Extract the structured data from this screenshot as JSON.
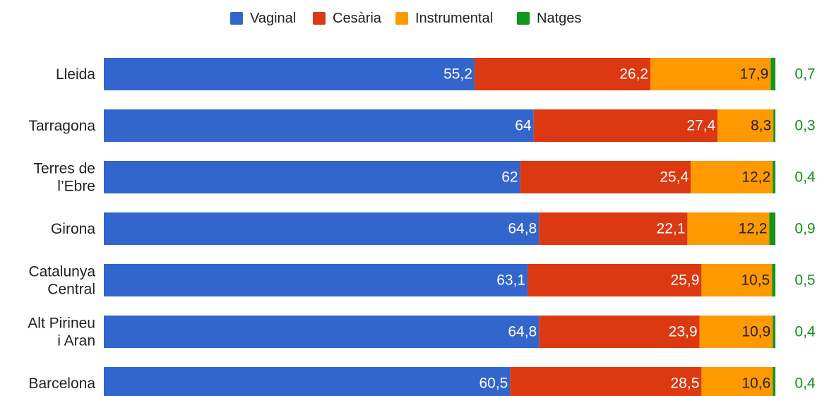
{
  "chart_data": {
    "type": "stacked-bar-horizontal",
    "categories": [
      "Lleida",
      "Tarragona",
      "Terres de\nl’Ebre",
      "Girona",
      "Catalunya\nCentral",
      "Alt Pirineu\ni Aran",
      "Barcelona"
    ],
    "series": [
      {
        "name": "Vaginal",
        "color": "#3366cc",
        "values": [
          55.2,
          64,
          62,
          64.8,
          63.1,
          64.8,
          60.5
        ],
        "value_labels": [
          "55,2",
          "64",
          "62",
          "64,8",
          "63,1",
          "64,8",
          "60,5"
        ]
      },
      {
        "name": "Cesària",
        "color": "#dc3912",
        "values": [
          26.2,
          27.4,
          25.4,
          22.1,
          25.9,
          23.9,
          28.5
        ],
        "value_labels": [
          "26,2",
          "27,4",
          "25,4",
          "22,1",
          "25,9",
          "23,9",
          "28,5"
        ]
      },
      {
        "name": "Instrumental",
        "color": "#ff9900",
        "values": [
          17.9,
          8.3,
          12.2,
          12.2,
          10.5,
          10.9,
          10.6
        ],
        "value_labels": [
          "17,9",
          "8,3",
          "12,2",
          "12,2",
          "10,5",
          "10,9",
          "10,6"
        ]
      },
      {
        "name": "Natges",
        "color": "#109618",
        "values": [
          0.7,
          0.3,
          0.4,
          0.9,
          0.5,
          0.4,
          0.4
        ],
        "value_labels": [
          "0,7",
          "0,3",
          "0,4",
          "0,9",
          "0,5",
          "0,4",
          "0,4"
        ]
      }
    ],
    "xlim": [
      0,
      100
    ],
    "legend": "top"
  }
}
